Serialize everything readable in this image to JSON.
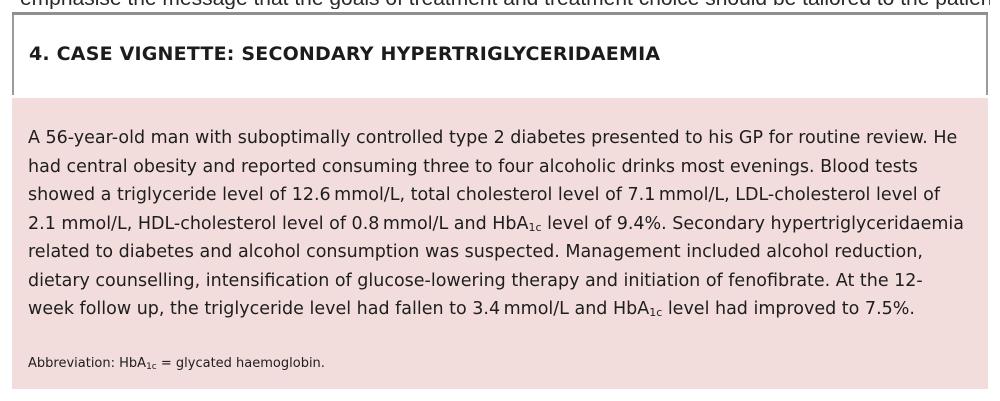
{
  "top_fragment": "emphasise the message that the goals of treatment and treatment choice should be tailored to the patient's specific needs and individual risk and preferences in the management of the patient",
  "box": {
    "title": "4. CASE VIGNETTE: SECONDARY HYPERTRIGLYCERIDAEMIA",
    "case_parts": {
      "p1": "A 56-year-old man with suboptimally controlled type 2 diabetes presented to his GP for routine review. He had central obesity and reported consuming three to four alcoholic drinks most evenings. Blood tests showed a triglyceride level of 12.6 mmol/L, total cholesterol level of 7.1 mmol/L, LDL-cholesterol level of 2.1 mmol/L, HDL-cholesterol level of 0.8 mmol/L and HbA",
      "sub1": "1c",
      "p2": " level of 9.4%. Secondary hypertriglyceridaemia related to diabetes and alcohol consumption was suspected. Management included alcohol reduction, dietary counselling, intensification of glucose-lowering therapy and initiation of fenofibrate. At the 12-week follow up, the triglyceride level had fallen to 3.4 mmol/L and HbA",
      "sub2": "1c",
      "p3": " level had improved to 7.5%."
    },
    "abbreviation": {
      "prefix": "Abbreviation: HbA",
      "sub": "1c",
      "suffix": " = glycated haemoglobin."
    }
  }
}
